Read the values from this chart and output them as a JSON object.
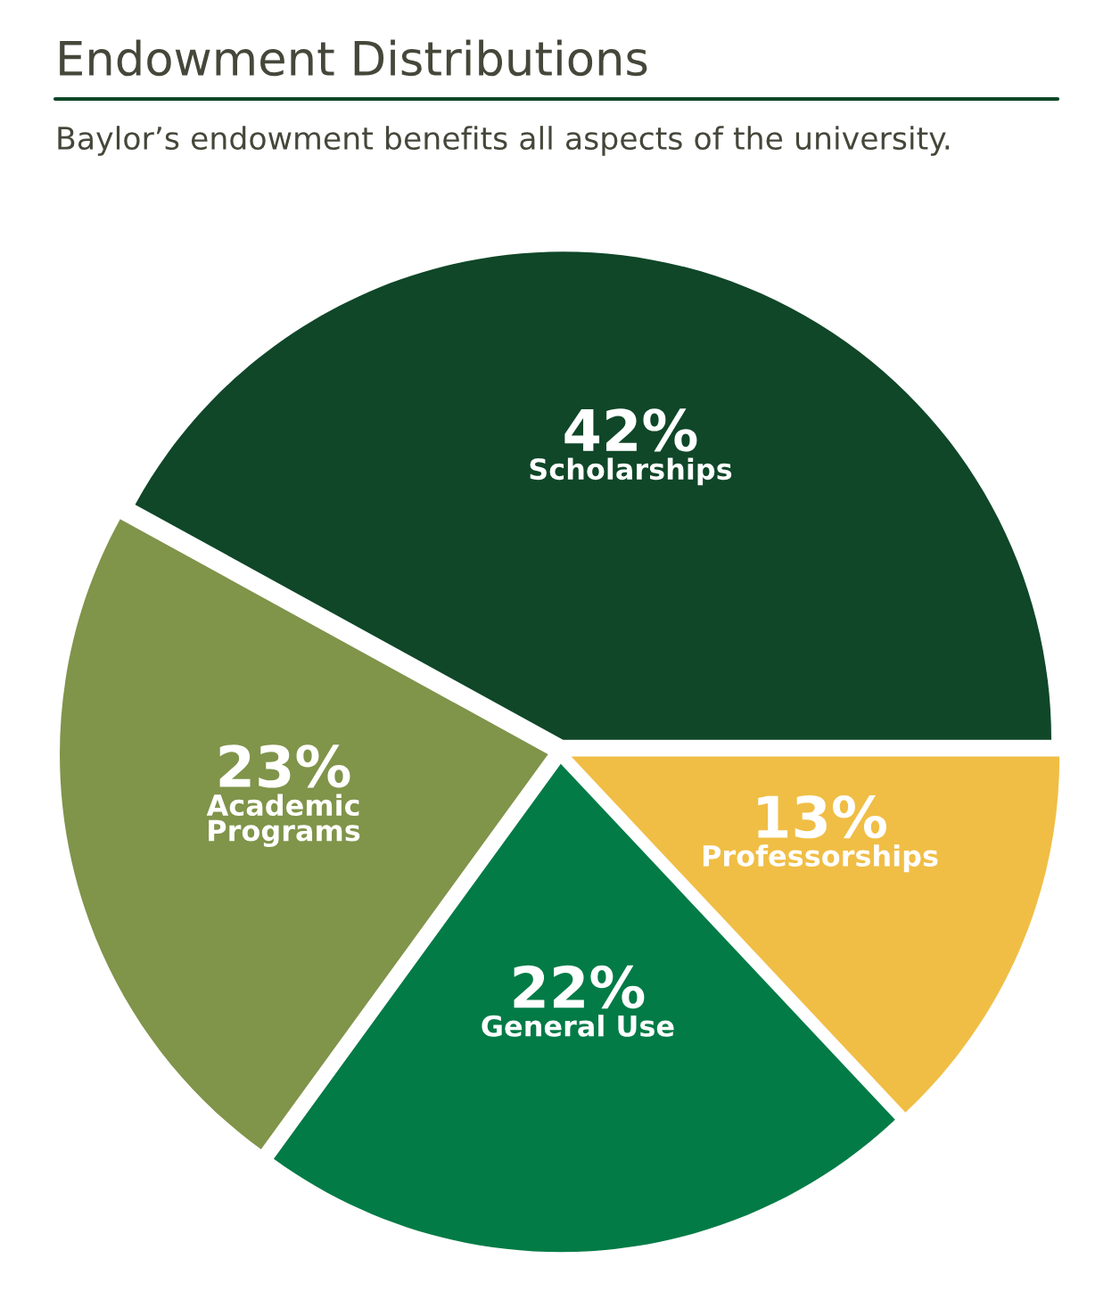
{
  "chart_data": {
    "type": "pie",
    "title": "Endowment Distributions",
    "subtitle": "Baylor’s endowment benefits all aspects of the university.",
    "categories": [
      "Scholarships",
      "Academic\nPrograms",
      "General Use",
      "Professorships"
    ],
    "values": [
      42,
      23,
      22,
      13
    ],
    "value_labels": [
      "42%",
      "23%",
      "22%",
      "13%"
    ],
    "colors": [
      "#0f4728",
      "#80944a",
      "#027b46",
      "#f0be45"
    ]
  }
}
